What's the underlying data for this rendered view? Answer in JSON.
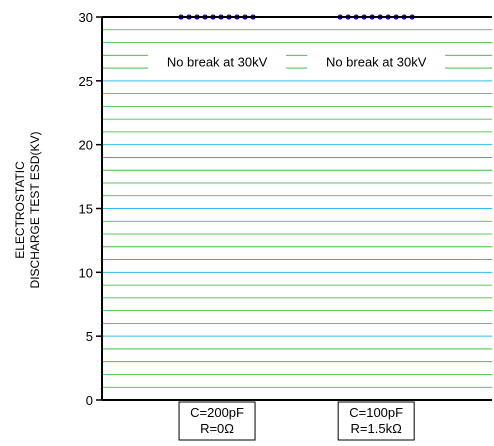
{
  "chart_data": {
    "type": "scatter",
    "ylabel_lines": [
      "ELECTROSTATIC",
      "DISCHARGE TEST ESD(KV)"
    ],
    "ylim": [
      0,
      30
    ],
    "yticks": [
      0,
      5,
      10,
      15,
      20,
      25,
      30
    ],
    "grid": true,
    "grid_minor_step": 1,
    "categories": [
      {
        "lines": [
          "C=200pF",
          "R=0Ω"
        ]
      },
      {
        "lines": [
          "C=100pF",
          "R=1.5kΩ"
        ]
      }
    ],
    "series": [
      {
        "values": [
          30,
          30
        ],
        "samples_per_category": 10
      }
    ],
    "annotations": [
      {
        "category_index": 0,
        "y": 26.5,
        "text": "No break at 30kV"
      },
      {
        "category_index": 1,
        "y": 26.5,
        "text": "No break at 30kV"
      }
    ],
    "colors": {
      "major_grid": "#33bbee",
      "minor_grid": "#22bb22",
      "points": "#1111dd",
      "axis": "#000000"
    }
  }
}
